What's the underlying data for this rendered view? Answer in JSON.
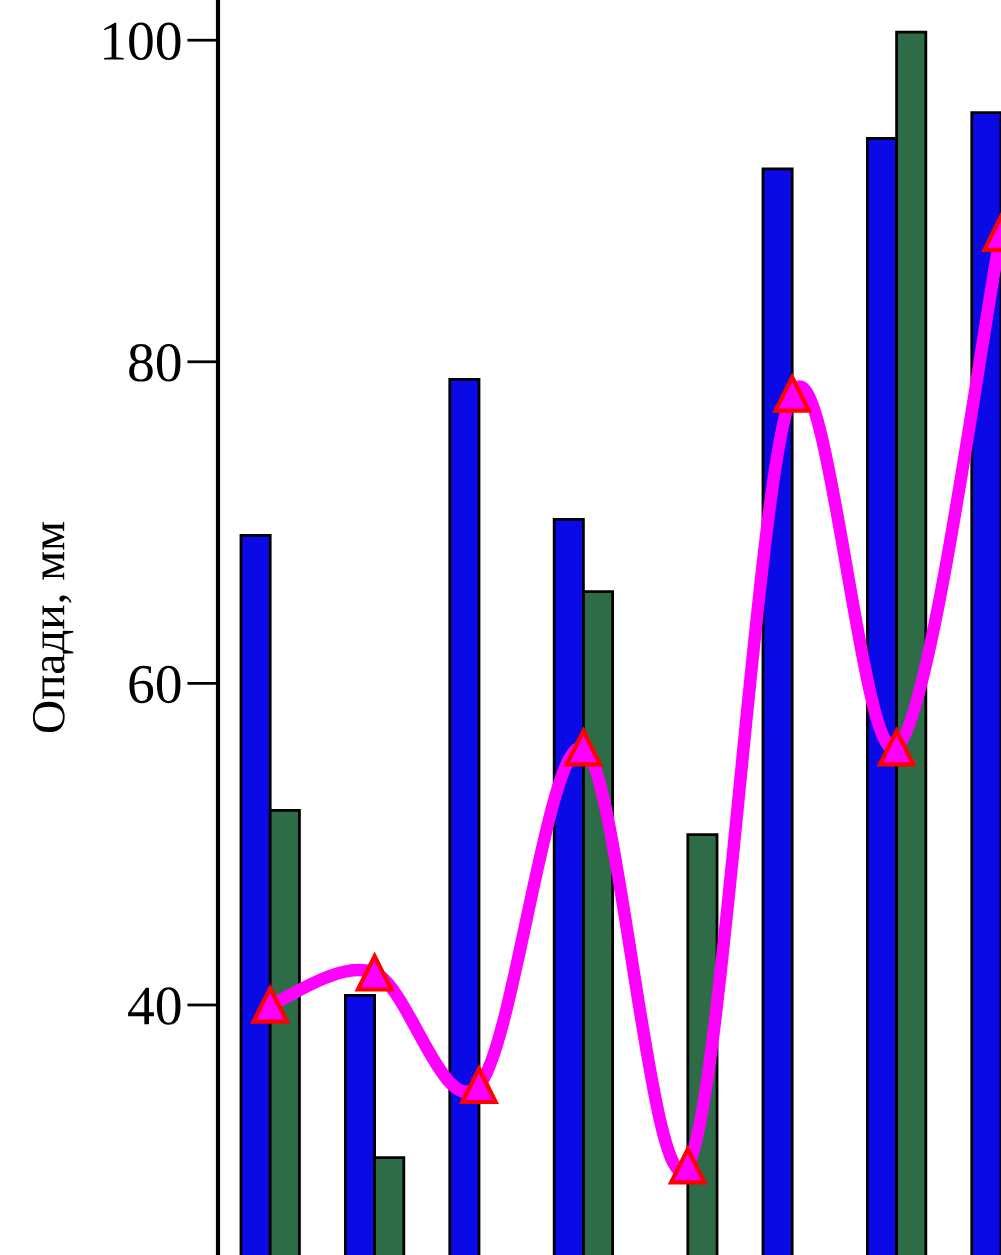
{
  "chart_data": {
    "type": "bar",
    "ylabel": "Опади, мм",
    "categories": [
      null,
      null,
      null,
      null,
      null,
      null,
      null,
      null
    ],
    "series": [
      {
        "color": "#0a0ae6",
        "values": [
          69.2,
          40.6,
          78.9,
          70.2,
          null,
          92.0,
          93.9,
          95.5
        ]
      },
      {
        "color": "#2e6b47",
        "values": [
          52.1,
          30.5,
          null,
          65.7,
          50.6,
          null,
          100.5,
          null
        ]
      },
      {
        "type": "line",
        "color": "#ff00ff",
        "marker": "triangle",
        "values": [
          40,
          42,
          35,
          56,
          30,
          78,
          56,
          88
        ]
      }
    ],
    "ylim": [
      24.45,
      102.5
    ],
    "yticks": [
      40,
      60,
      80,
      100
    ],
    "tick_labels": "y",
    "grid": false,
    "legend": false
  }
}
